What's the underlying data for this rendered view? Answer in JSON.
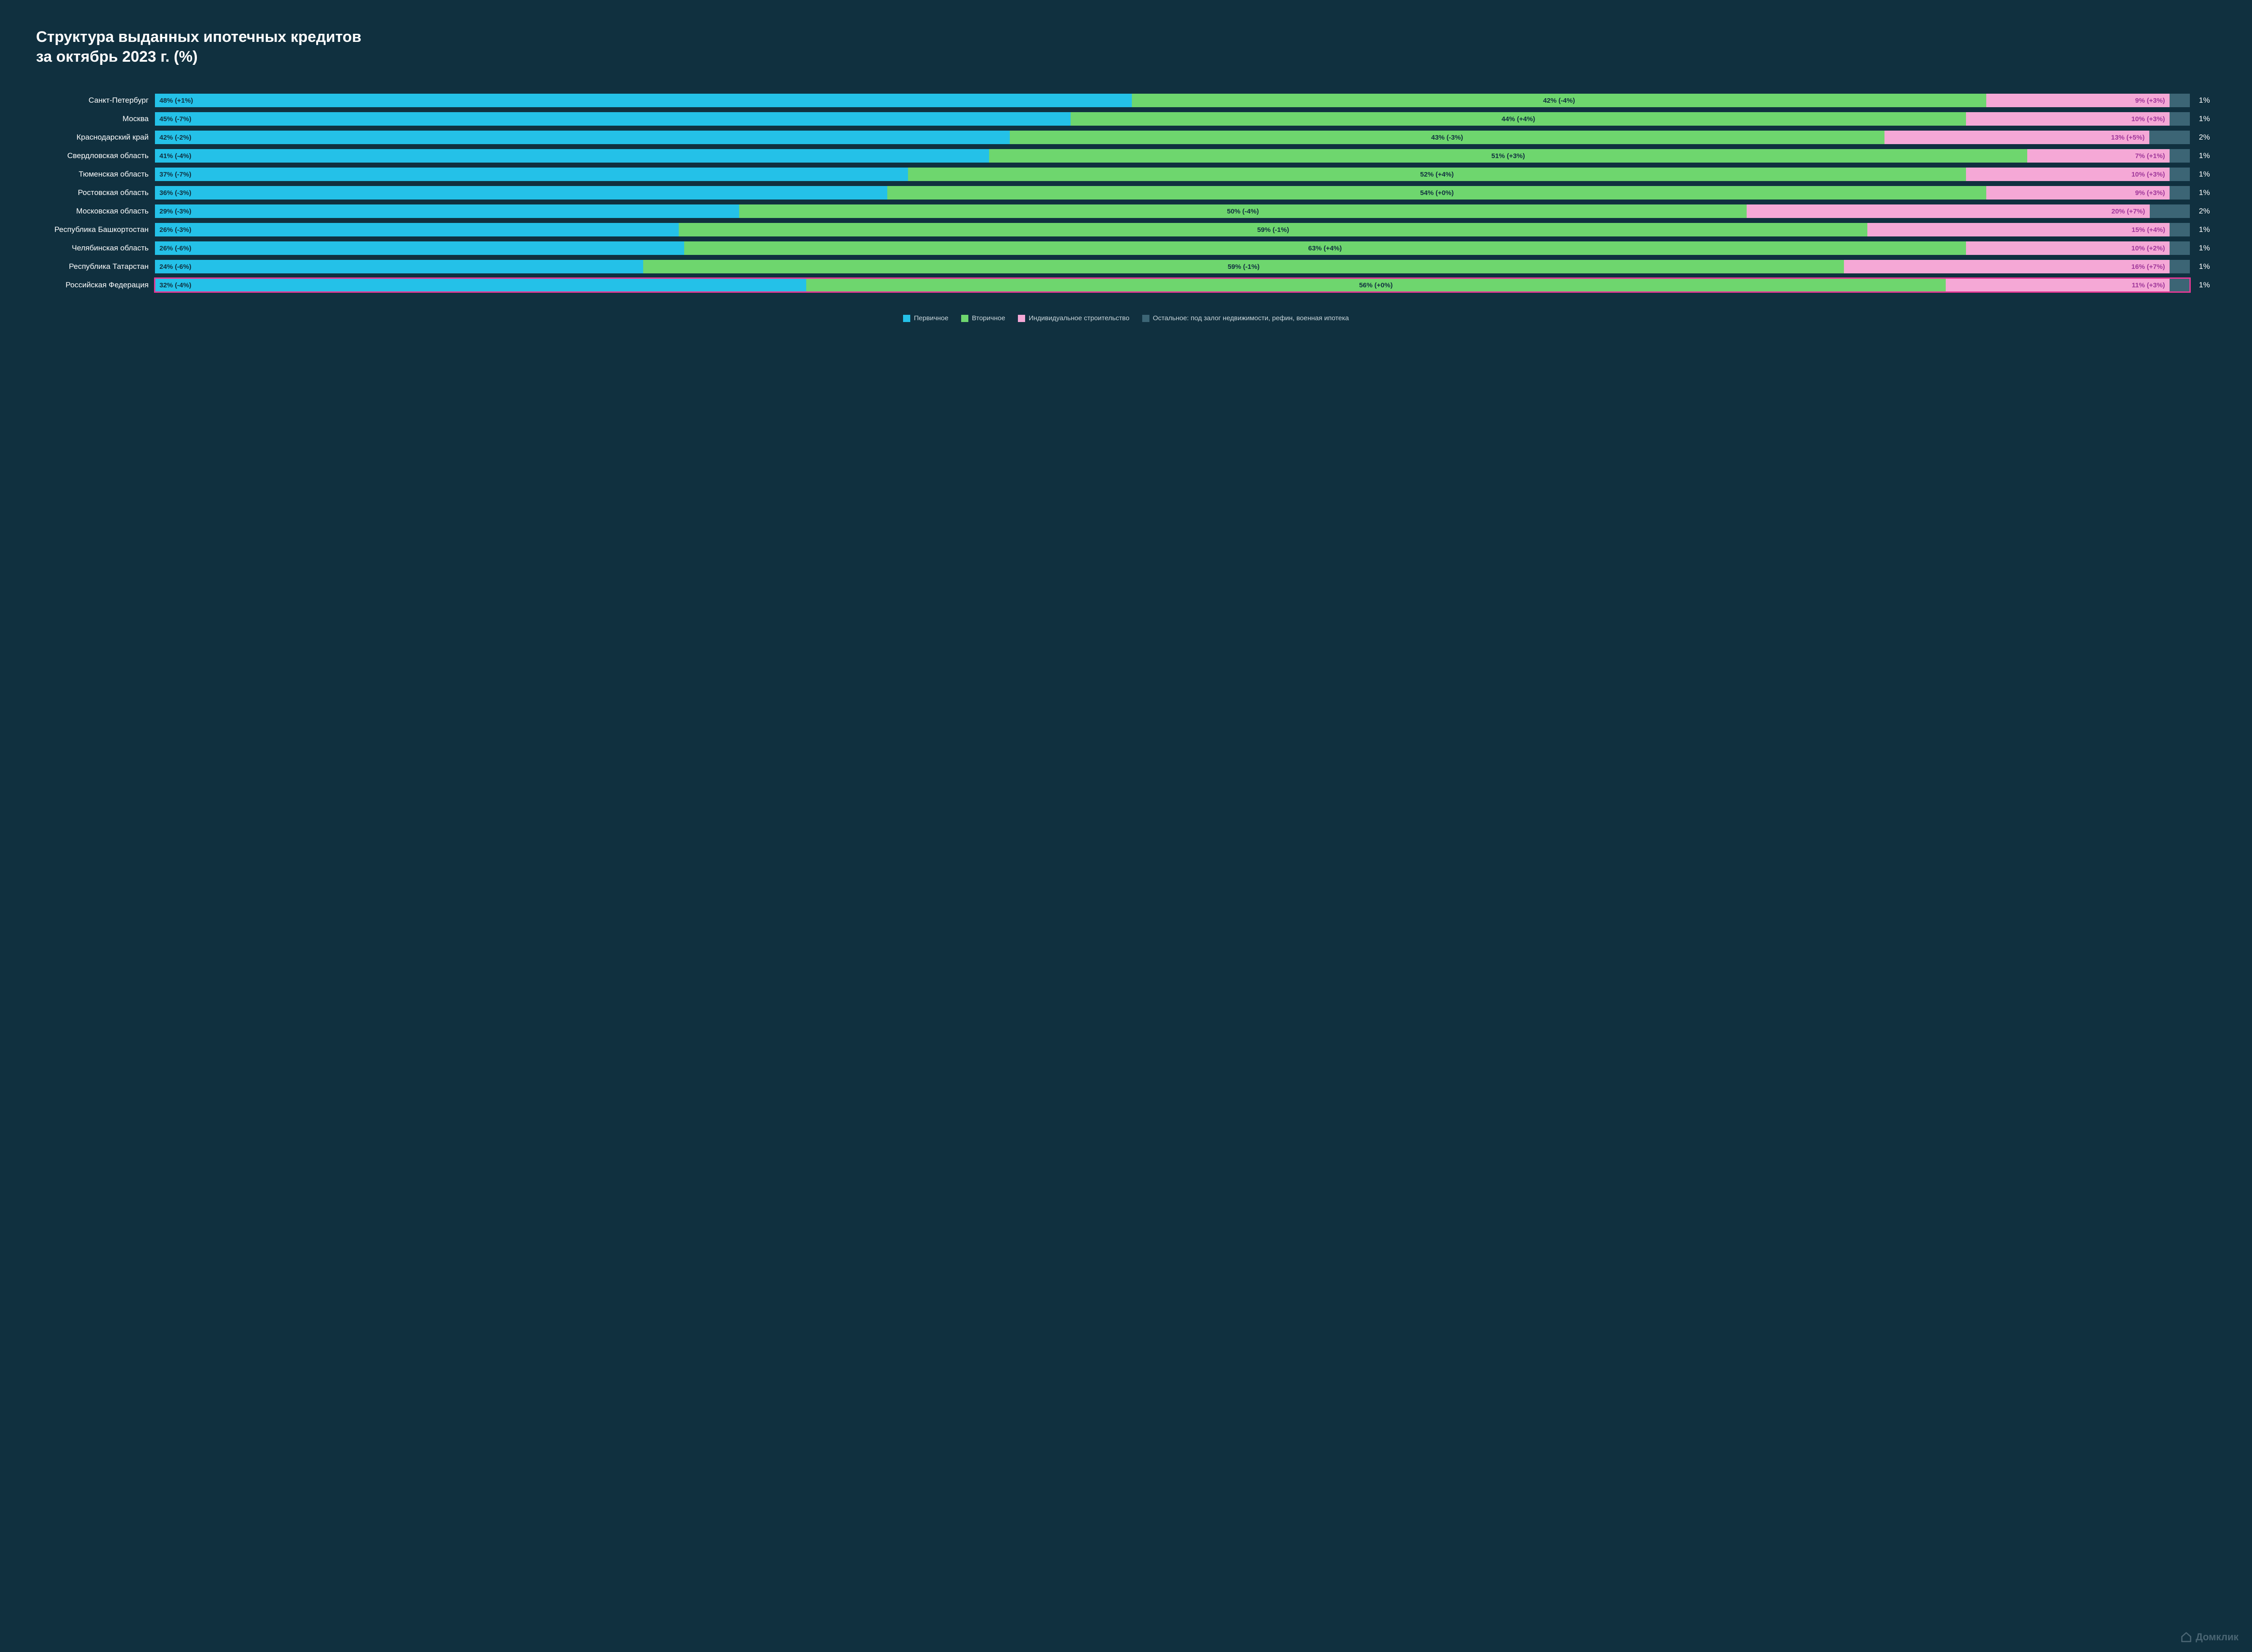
{
  "title_line1": "Структура выданных ипотечных кредитов",
  "title_line2": "за октябрь 2023 г. (%)",
  "colors": {
    "primary": "#24c1e8",
    "secondary": "#6ed66e",
    "individual": "#f5a8d6",
    "other": "#3c6575",
    "highlight_border": "#e73895",
    "bg": "#10303f",
    "text_white": "#ffffff",
    "label_primary": "#10303f",
    "label_secondary": "#10303f",
    "label_individual": "#a0379a",
    "tail_text": "#ffffff",
    "legend_text": "#c9d6db",
    "logo_color": "#4a6573"
  },
  "font_sizes": {
    "title": 34,
    "row_label": 17,
    "seg_label": 15,
    "legend": 15
  },
  "legend": [
    {
      "label": "Первичное",
      "color_key": "primary"
    },
    {
      "label": "Вторичное",
      "color_key": "secondary"
    },
    {
      "label": "Индивидуальное строительство",
      "color_key": "individual"
    },
    {
      "label": "Остальное: под залог недвижимости, рефин, военная ипотека",
      "color_key": "other"
    }
  ],
  "rows": [
    {
      "label": "Санкт-Петербург",
      "highlight": false,
      "segs": [
        {
          "k": "primary",
          "v": 48,
          "txt": "48% (+1%)",
          "align": "left"
        },
        {
          "k": "secondary",
          "v": 42,
          "txt": "42% (-4%)",
          "align": "center"
        },
        {
          "k": "individual",
          "v": 9,
          "txt": "9% (+3%)",
          "align": "right",
          "lbl": "label_individual"
        },
        {
          "k": "other",
          "v": 1,
          "txt": ""
        }
      ],
      "tail": "1%"
    },
    {
      "label": "Москва",
      "highlight": false,
      "segs": [
        {
          "k": "primary",
          "v": 45,
          "txt": "45% (-7%)",
          "align": "left"
        },
        {
          "k": "secondary",
          "v": 44,
          "txt": "44% (+4%)",
          "align": "center"
        },
        {
          "k": "individual",
          "v": 10,
          "txt": "10% (+3%)",
          "align": "right",
          "lbl": "label_individual"
        },
        {
          "k": "other",
          "v": 1,
          "txt": ""
        }
      ],
      "tail": "1%"
    },
    {
      "label": "Краснодарский край",
      "highlight": false,
      "segs": [
        {
          "k": "primary",
          "v": 42,
          "txt": "42% (-2%)",
          "align": "left"
        },
        {
          "k": "secondary",
          "v": 43,
          "txt": "43% (-3%)",
          "align": "center"
        },
        {
          "k": "individual",
          "v": 13,
          "txt": "13% (+5%)",
          "align": "right",
          "lbl": "label_individual"
        },
        {
          "k": "other",
          "v": 2,
          "txt": ""
        }
      ],
      "tail": "2%"
    },
    {
      "label": "Свердловская область",
      "highlight": false,
      "segs": [
        {
          "k": "primary",
          "v": 41,
          "txt": "41% (-4%)",
          "align": "left"
        },
        {
          "k": "secondary",
          "v": 51,
          "txt": "51% (+3%)",
          "align": "center"
        },
        {
          "k": "individual",
          "v": 7,
          "txt": "7% (+1%)",
          "align": "right",
          "lbl": "label_individual"
        },
        {
          "k": "other",
          "v": 1,
          "txt": ""
        }
      ],
      "tail": "1%"
    },
    {
      "label": "Тюменская область",
      "highlight": false,
      "segs": [
        {
          "k": "primary",
          "v": 37,
          "txt": "37% (-7%)",
          "align": "left"
        },
        {
          "k": "secondary",
          "v": 52,
          "txt": "52% (+4%)",
          "align": "center"
        },
        {
          "k": "individual",
          "v": 10,
          "txt": "10% (+3%)",
          "align": "right",
          "lbl": "label_individual"
        },
        {
          "k": "other",
          "v": 1,
          "txt": ""
        }
      ],
      "tail": "1%"
    },
    {
      "label": "Ростовская область",
      "highlight": false,
      "segs": [
        {
          "k": "primary",
          "v": 36,
          "txt": "36% (-3%)",
          "align": "left"
        },
        {
          "k": "secondary",
          "v": 54,
          "txt": "54% (+0%)",
          "align": "center"
        },
        {
          "k": "individual",
          "v": 9,
          "txt": "9% (+3%)",
          "align": "right",
          "lbl": "label_individual"
        },
        {
          "k": "other",
          "v": 1,
          "txt": ""
        }
      ],
      "tail": "1%"
    },
    {
      "label": "Московская область",
      "highlight": false,
      "segs": [
        {
          "k": "primary",
          "v": 29,
          "txt": "29% (-3%)",
          "align": "left"
        },
        {
          "k": "secondary",
          "v": 50,
          "txt": "50% (-4%)",
          "align": "center"
        },
        {
          "k": "individual",
          "v": 20,
          "txt": "20% (+7%)",
          "align": "right",
          "lbl": "label_individual"
        },
        {
          "k": "other",
          "v": 2,
          "txt": ""
        }
      ],
      "tail": "2%"
    },
    {
      "label": "Республика Башкортостан",
      "highlight": false,
      "segs": [
        {
          "k": "primary",
          "v": 26,
          "txt": "26% (-3%)",
          "align": "left"
        },
        {
          "k": "secondary",
          "v": 59,
          "txt": "59% (-1%)",
          "align": "center"
        },
        {
          "k": "individual",
          "v": 15,
          "txt": "15% (+4%)",
          "align": "right",
          "lbl": "label_individual"
        },
        {
          "k": "other",
          "v": 1,
          "txt": ""
        }
      ],
      "tail": "1%"
    },
    {
      "label": "Челябинская область",
      "highlight": false,
      "segs": [
        {
          "k": "primary",
          "v": 26,
          "txt": "26% (-6%)",
          "align": "left"
        },
        {
          "k": "secondary",
          "v": 63,
          "txt": "63% (+4%)",
          "align": "center"
        },
        {
          "k": "individual",
          "v": 10,
          "txt": "10% (+2%)",
          "align": "right",
          "lbl": "label_individual"
        },
        {
          "k": "other",
          "v": 1,
          "txt": ""
        }
      ],
      "tail": "1%"
    },
    {
      "label": "Республика Татарстан",
      "highlight": false,
      "segs": [
        {
          "k": "primary",
          "v": 24,
          "txt": "24% (-6%)",
          "align": "left"
        },
        {
          "k": "secondary",
          "v": 59,
          "txt": "59% (-1%)",
          "align": "center"
        },
        {
          "k": "individual",
          "v": 16,
          "txt": "16% (+7%)",
          "align": "right",
          "lbl": "label_individual"
        },
        {
          "k": "other",
          "v": 1,
          "txt": ""
        }
      ],
      "tail": "1%"
    },
    {
      "label": "Российская Федерация",
      "highlight": true,
      "segs": [
        {
          "k": "primary",
          "v": 32,
          "txt": "32% (-4%)",
          "align": "left"
        },
        {
          "k": "secondary",
          "v": 56,
          "txt": "56% (+0%)",
          "align": "center"
        },
        {
          "k": "individual",
          "v": 11,
          "txt": "11% (+3%)",
          "align": "right",
          "lbl": "label_individual"
        },
        {
          "k": "other",
          "v": 1,
          "txt": ""
        }
      ],
      "tail": "1%"
    }
  ],
  "logo_text": "Домклик"
}
